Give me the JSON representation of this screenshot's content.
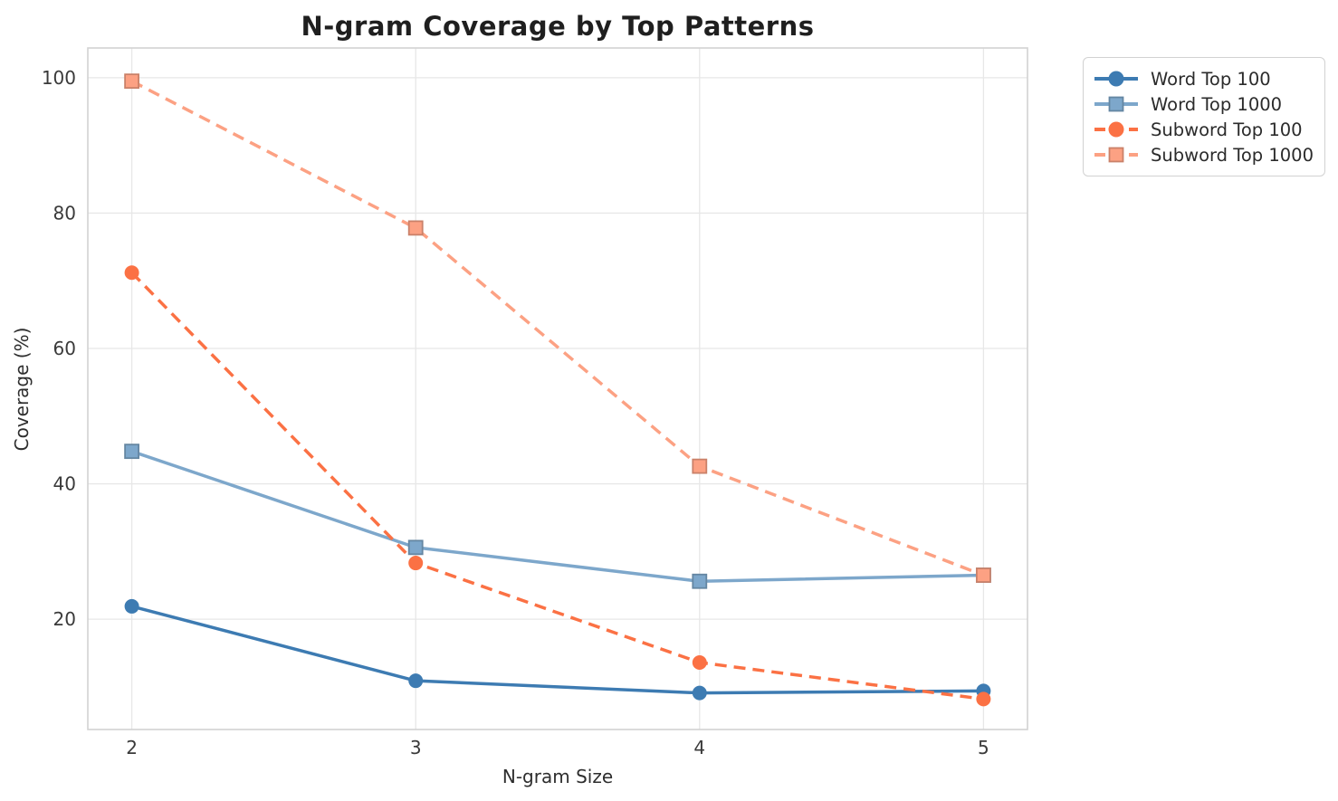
{
  "figure": {
    "background": "#ffffff",
    "grid_color": "#e7e7e7",
    "spine_color": "#d2d2d2",
    "title_color": "#1f1f1f",
    "tick_color": "#3a3a3a"
  },
  "chart_data": {
    "type": "line",
    "title": "N-gram Coverage by Top Patterns",
    "xlabel": "N-gram Size",
    "ylabel": "Coverage (%)",
    "x": [
      2,
      3,
      4,
      5
    ],
    "xticks": [
      "2",
      "3",
      "4",
      "5"
    ],
    "yticks": [
      "20",
      "40",
      "60",
      "80",
      "100"
    ],
    "ytick_values": [
      20,
      40,
      60,
      80,
      100
    ],
    "xlim": [
      1.845,
      5.155
    ],
    "ylim": [
      3.7,
      104.4
    ],
    "grid": true,
    "legend_position": "outside-top-right",
    "series": [
      {
        "name": "Word Top 100",
        "values": [
          21.9,
          10.9,
          9.1,
          9.4
        ],
        "color": "#3d7bb2",
        "line_style": "solid",
        "marker": "circle"
      },
      {
        "name": "Word Top 1000",
        "values": [
          44.8,
          30.6,
          25.6,
          26.5
        ],
        "color": "#7da7cb",
        "line_style": "solid",
        "marker": "square"
      },
      {
        "name": "Subword Top 100",
        "values": [
          71.2,
          28.3,
          13.6,
          8.2
        ],
        "color": "#fb7144",
        "line_style": "dashed",
        "marker": "circle"
      },
      {
        "name": "Subword Top 1000",
        "values": [
          99.5,
          77.8,
          42.6,
          26.5
        ],
        "color": "#fca183",
        "line_style": "dashed",
        "marker": "square"
      }
    ]
  }
}
